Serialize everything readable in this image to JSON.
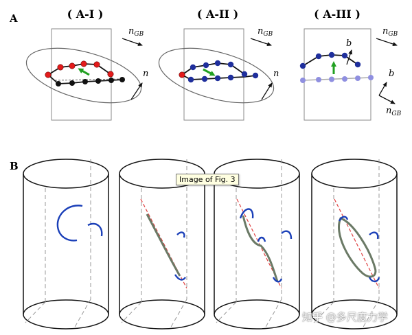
{
  "figure": {
    "panel_a": {
      "letter": "A",
      "subpanels": [
        {
          "title": "( A-I )",
          "n_gb": "n",
          "n_gb_sub": "GB",
          "n": "n"
        },
        {
          "title": "( A-II )",
          "n_gb": "n",
          "n_gb_sub": "GB",
          "n": "n"
        },
        {
          "title": "( A-III )",
          "n_gb": "n",
          "n_gb_sub": "GB",
          "b": "b",
          "axis_b": "b",
          "axis_n": "n",
          "axis_n_sub": "GB"
        }
      ]
    },
    "panel_b": {
      "letter": "B"
    },
    "colors": {
      "red_atom": "#e31b1b",
      "black_atom": "#111111",
      "blue_atom": "#1f2f9c",
      "light_blue_atom": "#8f8fe0",
      "green_arrow": "#22a022",
      "dislocation_blue": "#1a3fb8",
      "dislocation_grey": "#6b7a66",
      "trace_red": "#e04040"
    }
  },
  "tooltip": "Image of Fig. 3",
  "watermark": "知乎 @多尺度力学"
}
